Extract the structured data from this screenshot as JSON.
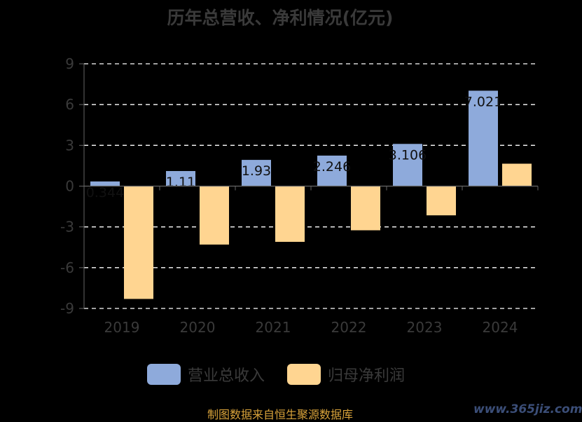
{
  "chart_data": {
    "type": "bar",
    "title": "历年总营收、净利情况(亿元)",
    "categories": [
      "2019",
      "2020",
      "2021",
      "2022",
      "2023",
      "2024"
    ],
    "series": [
      {
        "name": "营业总收入",
        "color": "#8eaadb",
        "values": [
          0.344,
          1.11,
          1.93,
          2.246,
          3.106,
          7.021
        ],
        "labels": [
          "0.344",
          "1.11",
          "1.93",
          "2.246",
          "3.106",
          "7.021"
        ]
      },
      {
        "name": "归母净利润",
        "color": "#ffd591",
        "values": [
          -8.3,
          -4.3,
          -4.1,
          -3.25,
          -2.15,
          1.65
        ]
      }
    ],
    "yticks": [
      "9",
      "6",
      "3",
      "0",
      "-3",
      "-6",
      "-9"
    ],
    "ylim": [
      -9,
      9
    ],
    "grid": true,
    "legend_position": "bottom"
  },
  "source": "制图数据来自恒生聚源数据库",
  "watermark": "www.365jiz.com"
}
